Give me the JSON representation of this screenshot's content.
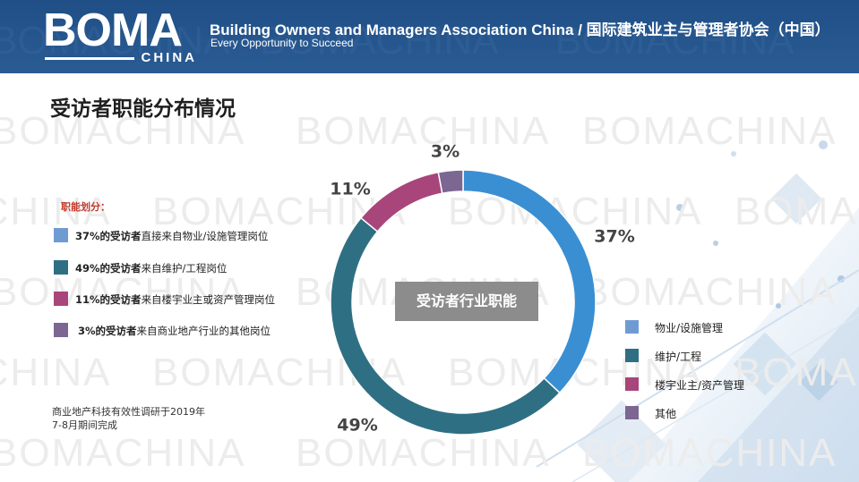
{
  "header": {
    "logo_main": "BOMA",
    "logo_sub": "CHINA",
    "title": "Building Owners and Managers Association China / 国际建筑业主与管理者协会（中国）",
    "subtitle": "Every Opportunity to Succeed"
  },
  "watermark_text": "BOMACHINA",
  "page_title": "受访者职能分布情况",
  "legend_title": "职能划分：",
  "left_legend": [
    {
      "bold": "37%的受访者",
      "text": "直接来自物业/设施管理岗位",
      "color": "#6f9bd3"
    },
    {
      "bold": "49%的受访者",
      "text": "来自维护/工程岗位",
      "color": "#2f6f84"
    },
    {
      "bold": "11%的受访者",
      "text": "来自楼宇业主或资产管理岗位",
      "color": "#a8457a"
    },
    {
      "bold": "3%的受访者",
      "text": "来自商业地产行业的其他岗位",
      "color": "#7b6792"
    }
  ],
  "note": [
    "商业地产科技有效性调研于2019年",
    "7-8月期间完成"
  ],
  "center_label": "受访者行业职能",
  "chart_data": {
    "type": "pie",
    "subtype": "donut",
    "categories": [
      "物业/设施管理",
      "维护/工程",
      "楼宇业主/资产管理",
      "其他"
    ],
    "values": [
      37,
      49,
      11,
      3
    ],
    "data_labels": [
      "37%",
      "49%",
      "11%",
      "3%"
    ],
    "colors": [
      "#3a8fd3",
      "#2f6f84",
      "#a8457a",
      "#7b6792"
    ],
    "legend_position": "right"
  },
  "right_legend_colors": [
    "#6f9bd3",
    "#2f6f84",
    "#a8457a",
    "#7b6792"
  ]
}
